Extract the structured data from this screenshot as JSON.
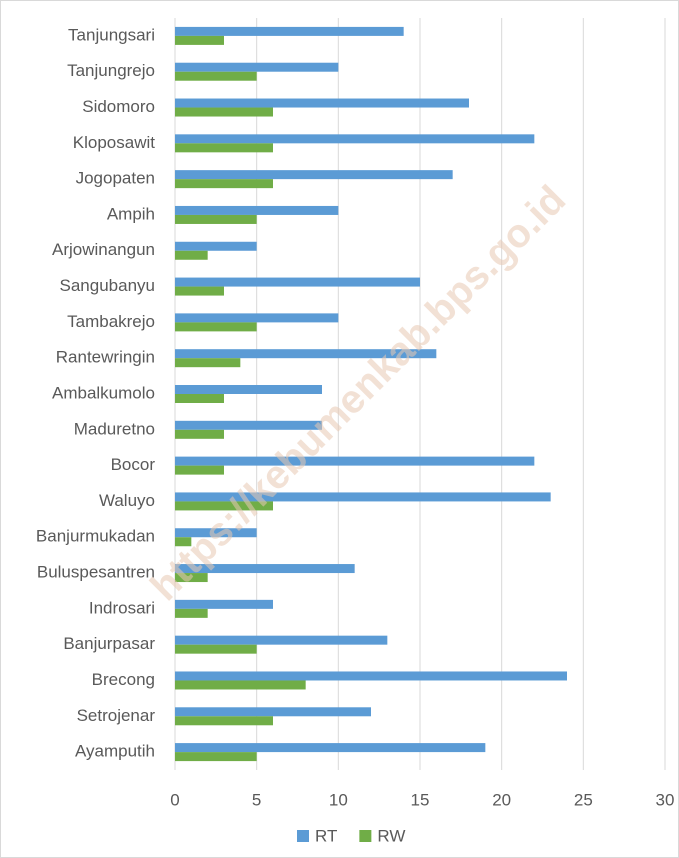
{
  "chart_data": {
    "type": "barh",
    "categories": [
      "Tanjungsari",
      "Tanjungrejo",
      "Sidomoro",
      "Kloposawit",
      "Jogopaten",
      "Ampih",
      "Arjowinangun",
      "Sangubanyu",
      "Tambakrejo",
      "Rantewringin",
      "Ambalkumolo",
      "Maduretno",
      "Bocor",
      "Waluyo",
      "Banjurmukadan",
      "Buluspesantren",
      "Indrosari",
      "Banjurpasar",
      "Brecong",
      "Setrojenar",
      "Ayamputih"
    ],
    "series": [
      {
        "name": "RT",
        "color": "#5b9bd5",
        "values": [
          14,
          10,
          18,
          22,
          17,
          10,
          5,
          15,
          10,
          16,
          9,
          9,
          22,
          23,
          5,
          11,
          6,
          13,
          24,
          12,
          19
        ]
      },
      {
        "name": "RW",
        "color": "#70ad47",
        "values": [
          3,
          5,
          6,
          6,
          6,
          5,
          2,
          3,
          5,
          4,
          3,
          3,
          3,
          6,
          1,
          2,
          2,
          5,
          8,
          6,
          5
        ]
      }
    ],
    "xlim": [
      0,
      30
    ],
    "xticks": [
      0,
      5,
      10,
      15,
      20,
      25,
      30
    ],
    "grid": true,
    "legend": "bottom",
    "watermark": "https://kebumenkab.bps.go.id"
  }
}
